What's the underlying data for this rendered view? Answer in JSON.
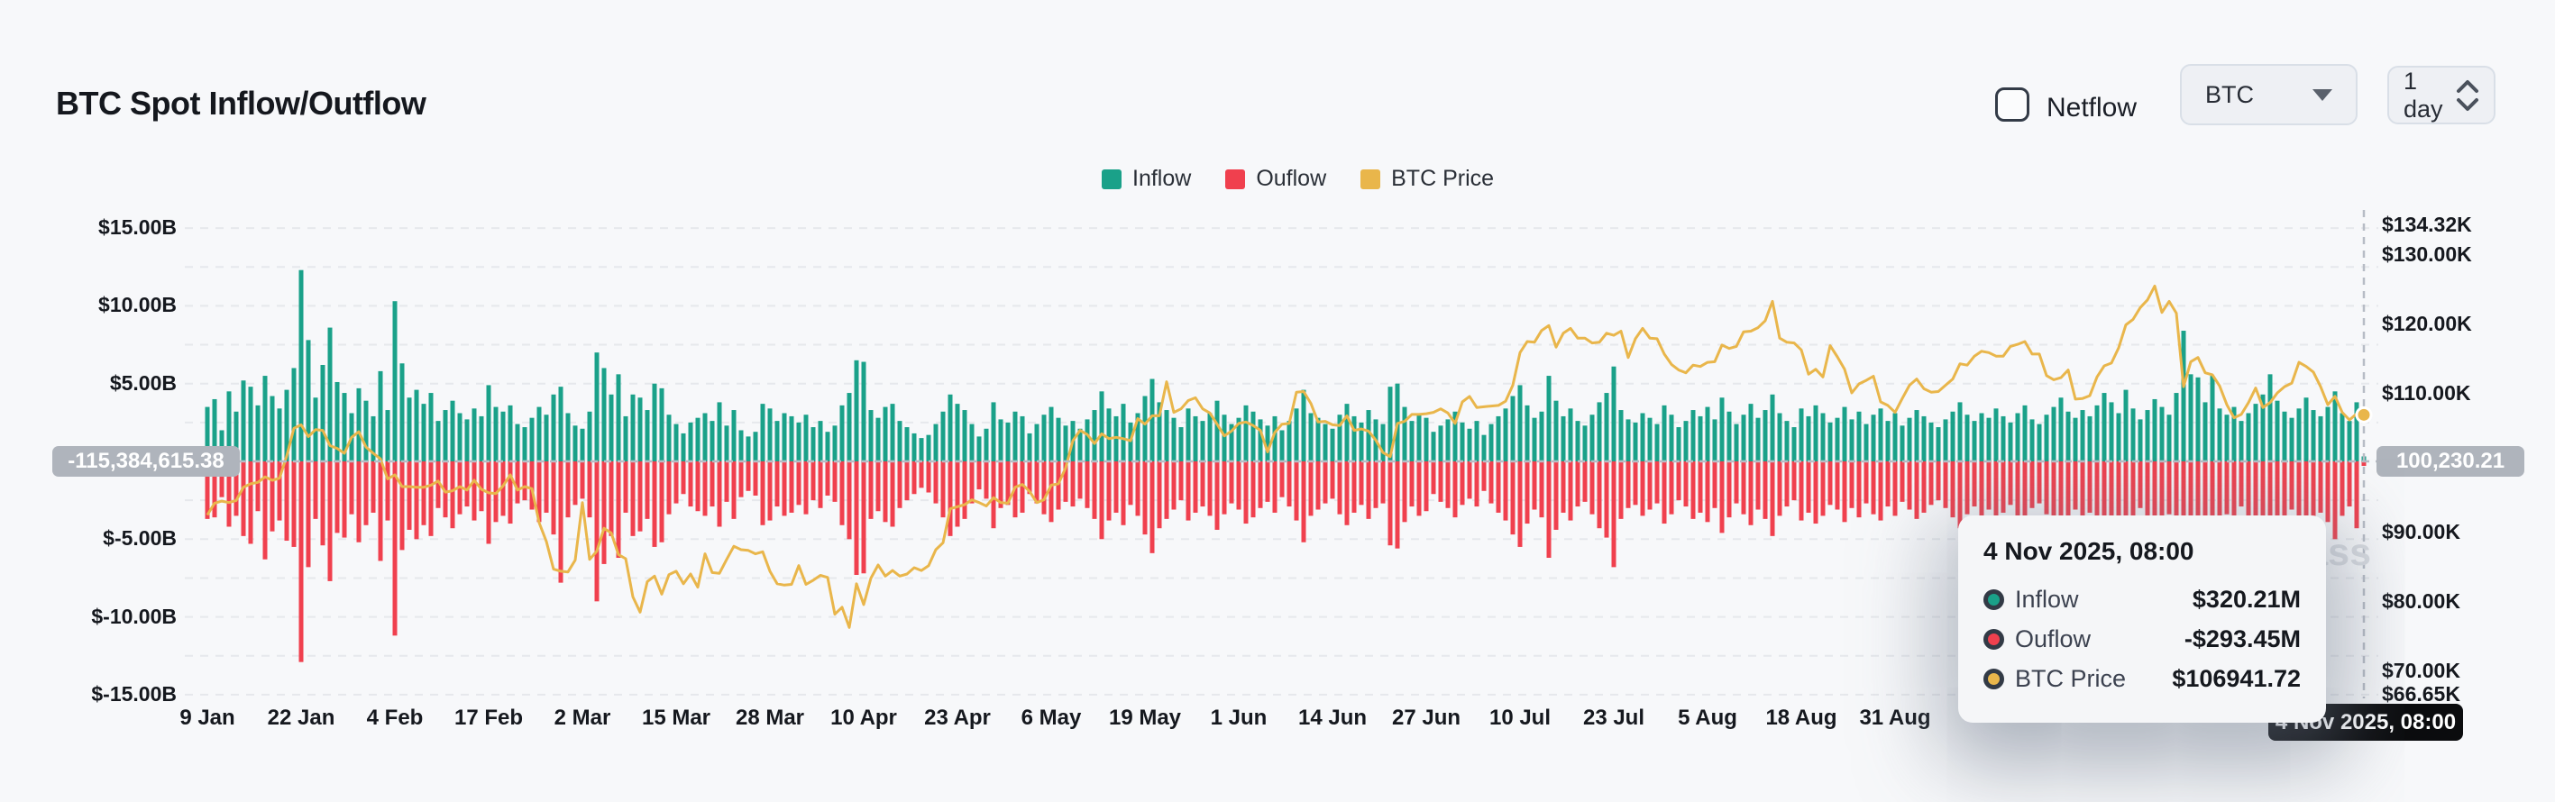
{
  "header": {
    "title": "BTC Spot Inflow/Outflow"
  },
  "controls": {
    "netflow_label": "Netflow",
    "coin_selected": "BTC",
    "interval_selected": "1 day"
  },
  "legend": [
    {
      "label": "Inflow",
      "color": "#1aa189"
    },
    {
      "label": "Ouflow",
      "color": "#f0404e"
    },
    {
      "label": "BTC Price",
      "color": "#e9b64b"
    }
  ],
  "watermark": {
    "text": "coinglass"
  },
  "crosshair": {
    "left_value": "-115,384,615.38",
    "right_value": "100,230.21",
    "x_value": "4 Nov 2025, 08:00"
  },
  "tooltip": {
    "title": "4 Nov 2025, 08:00",
    "rows": [
      {
        "label": "Inflow",
        "value": "$320.21M",
        "color": "#1aa189"
      },
      {
        "label": "Ouflow",
        "value": "-$293.45M",
        "color": "#f0404e"
      },
      {
        "label": "BTC Price",
        "value": "$106941.72",
        "color": "#e9b64b"
      }
    ]
  },
  "chart_data": {
    "type": "bar+line",
    "title": "BTC Spot Inflow/Outflow",
    "frequency": "daily",
    "x_start": "9 Jan 2025",
    "x_end": "4 Nov 2025",
    "left_axis": {
      "unit": "$B",
      "range": [
        -15,
        15
      ],
      "grid_step": 2.5
    },
    "right_axis": {
      "unit": "$K",
      "range": [
        66.65,
        134.32
      ]
    },
    "left_ticks": [
      {
        "label": "$15.00B",
        "value": 15
      },
      {
        "label": "$10.00B",
        "value": 10
      },
      {
        "label": "$5.00B",
        "value": 5
      },
      {
        "label": "$-5.00B",
        "value": -5
      },
      {
        "label": "$-10.00B",
        "value": -10
      },
      {
        "label": "$-15.00B",
        "value": -15
      }
    ],
    "right_ticks": [
      {
        "label": "$134.32K",
        "value": 134.32
      },
      {
        "label": "$130.00K",
        "value": 130
      },
      {
        "label": "$120.00K",
        "value": 120
      },
      {
        "label": "$110.00K",
        "value": 110
      },
      {
        "label": "$90.00K",
        "value": 90
      },
      {
        "label": "$80.00K",
        "value": 80
      },
      {
        "label": "$70.00K",
        "value": 70
      },
      {
        "label": "$66.65K",
        "value": 66.65
      }
    ],
    "x_ticks": [
      {
        "label": "9 Jan",
        "index": 0
      },
      {
        "label": "22 Jan",
        "index": 13
      },
      {
        "label": "4 Feb",
        "index": 26
      },
      {
        "label": "17 Feb",
        "index": 39
      },
      {
        "label": "2 Mar",
        "index": 52
      },
      {
        "label": "15 Mar",
        "index": 65
      },
      {
        "label": "28 Mar",
        "index": 78
      },
      {
        "label": "10 Apr",
        "index": 91
      },
      {
        "label": "23 Apr",
        "index": 104
      },
      {
        "label": "6 May",
        "index": 117
      },
      {
        "label": "19 May",
        "index": 130
      },
      {
        "label": "1 Jun",
        "index": 143
      },
      {
        "label": "14 Jun",
        "index": 156
      },
      {
        "label": "27 Jun",
        "index": 169
      },
      {
        "label": "10 Jul",
        "index": 182
      },
      {
        "label": "23 Jul",
        "index": 195
      },
      {
        "label": "5 Aug",
        "index": 208
      },
      {
        "label": "18 Aug",
        "index": 221
      },
      {
        "label": "31 Aug",
        "index": 234
      }
    ],
    "series": [
      {
        "name": "Inflow",
        "type": "bar",
        "axis": "left",
        "unit": "$B",
        "color": "#1aa189",
        "values": [
          3.5,
          4.0,
          2.0,
          4.5,
          3.2,
          5.2,
          4.8,
          3.6,
          5.5,
          4.2,
          3.4,
          4.6,
          6.0,
          12.3,
          7.8,
          4.1,
          6.2,
          8.6,
          5.1,
          4.4,
          3.1,
          4.7,
          3.9,
          2.9,
          5.8,
          3.3,
          10.3,
          6.3,
          4.1,
          4.6,
          3.7,
          4.4,
          2.6,
          3.3,
          3.9,
          3.1,
          2.7,
          3.4,
          2.9,
          4.9,
          3.5,
          3.2,
          3.6,
          2.4,
          2.2,
          2.8,
          3.5,
          3.0,
          4.3,
          4.8,
          3.1,
          2.3,
          2.1,
          3.2,
          7.0,
          6.0,
          4.3,
          5.6,
          2.9,
          4.3,
          4.1,
          3.3,
          5.0,
          4.7,
          3.0,
          2.4,
          1.8,
          2.5,
          2.8,
          3.1,
          2.6,
          3.8,
          2.3,
          3.3,
          2.0,
          1.6,
          1.9,
          3.7,
          3.4,
          2.6,
          3.1,
          2.9,
          2.5,
          3.0,
          2.2,
          2.6,
          1.9,
          2.3,
          3.6,
          4.4,
          6.5,
          6.4,
          3.3,
          2.8,
          3.5,
          3.7,
          2.6,
          2.2,
          1.8,
          1.5,
          1.7,
          2.4,
          3.2,
          4.3,
          3.7,
          3.3,
          2.4,
          1.6,
          2.1,
          3.8,
          2.7,
          2.5,
          3.2,
          2.9,
          1.8,
          2.4,
          3.0,
          3.5,
          2.8,
          2.3,
          2.6,
          2.1,
          2.7,
          3.3,
          4.5,
          3.4,
          2.9,
          3.7,
          2.5,
          3.1,
          4.2,
          5.3,
          3.8,
          3.3,
          2.8,
          2.2,
          3.4,
          2.9,
          2.6,
          3.1,
          3.9,
          3.0,
          2.4,
          2.8,
          3.6,
          3.2,
          2.7,
          2.3,
          2.9,
          2.0,
          2.6,
          3.4,
          4.6,
          3.1,
          2.8,
          2.4,
          2.1,
          3.0,
          3.7,
          2.9,
          2.5,
          3.3,
          2.7,
          2.4,
          4.8,
          5.0,
          3.5,
          2.6,
          3.1,
          2.8,
          1.9,
          2.3,
          2.7,
          3.2,
          2.5,
          2.1,
          2.6,
          1.7,
          2.4,
          2.9,
          3.4,
          4.2,
          4.9,
          3.6,
          2.8,
          3.2,
          5.5,
          3.9,
          2.9,
          3.4,
          2.6,
          2.3,
          3.0,
          3.8,
          4.4,
          6.1,
          3.3,
          2.7,
          2.5,
          3.1,
          2.8,
          2.4,
          3.6,
          3.0,
          2.2,
          2.6,
          3.3,
          2.9,
          3.5,
          2.7,
          4.1,
          3.2,
          2.4,
          3.0,
          3.7,
          2.8,
          3.3,
          4.3,
          3.1,
          2.6,
          2.2,
          3.4,
          2.9,
          3.6,
          3.1,
          2.5,
          2.8,
          3.5,
          2.7,
          3.2,
          2.4,
          3.0,
          3.4,
          2.6,
          3.1,
          2.3,
          2.8,
          3.3,
          2.9,
          2.5,
          2.2,
          2.7,
          3.2,
          3.8,
          3.0,
          2.6,
          3.1,
          2.8,
          3.4,
          2.9,
          2.5,
          3.1,
          3.6,
          2.7,
          2.4,
          3.0,
          3.5,
          4.1,
          3.2,
          2.8,
          3.3,
          2.9,
          3.6,
          4.4,
          3.8,
          3.1,
          4.6,
          3.4,
          2.7,
          3.3,
          4.0,
          3.5,
          3.0,
          4.4,
          8.4,
          5.6,
          5.4,
          3.8,
          5.5,
          3.4,
          3.0,
          3.5,
          2.6,
          3.1,
          3.7,
          4.3,
          5.6,
          3.9,
          3.2,
          2.8,
          3.4,
          4.1,
          3.3,
          2.9,
          3.5,
          4.5,
          3.1,
          2.6,
          3.8,
          0.32
        ]
      },
      {
        "name": "Ouflow",
        "type": "bar",
        "axis": "left",
        "unit": "$B",
        "color": "#f0404e",
        "values": [
          -3.7,
          -3.6,
          -2.3,
          -4.2,
          -3.5,
          -4.8,
          -5.3,
          -3.2,
          -6.3,
          -4.5,
          -3.8,
          -5.1,
          -5.5,
          -12.9,
          -6.8,
          -3.7,
          -5.4,
          -7.7,
          -4.6,
          -4.9,
          -3.4,
          -5.2,
          -4.1,
          -3.3,
          -6.4,
          -3.8,
          -11.2,
          -5.7,
          -4.4,
          -5.0,
          -4.1,
          -4.8,
          -3.0,
          -3.6,
          -4.3,
          -3.4,
          -2.9,
          -3.8,
          -3.2,
          -5.3,
          -3.9,
          -3.5,
          -4.0,
          -2.7,
          -2.5,
          -3.1,
          -3.9,
          -3.3,
          -4.7,
          -7.8,
          -3.6,
          -2.8,
          -2.4,
          -3.6,
          -9.0,
          -6.6,
          -4.8,
          -6.2,
          -3.3,
          -4.8,
          -4.5,
          -3.7,
          -5.5,
          -5.2,
          -3.4,
          -2.7,
          -2.1,
          -2.9,
          -3.2,
          -3.5,
          -2.9,
          -4.2,
          -2.6,
          -3.7,
          -2.3,
          -1.9,
          -2.2,
          -4.1,
          -3.8,
          -2.9,
          -3.5,
          -3.3,
          -2.8,
          -3.4,
          -2.5,
          -3.0,
          -2.2,
          -2.6,
          -4.1,
          -5.0,
          -7.3,
          -7.2,
          -3.7,
          -3.2,
          -3.9,
          -4.2,
          -3.0,
          -2.5,
          -2.1,
          -1.7,
          -2.0,
          -2.7,
          -3.6,
          -4.8,
          -4.2,
          -3.7,
          -2.7,
          -1.8,
          -2.4,
          -4.3,
          -3.0,
          -2.8,
          -3.6,
          -3.3,
          -2.1,
          -2.7,
          -3.4,
          -3.9,
          -3.1,
          -2.6,
          -2.9,
          -2.4,
          -3.0,
          -3.7,
          -5.0,
          -3.8,
          -3.3,
          -4.1,
          -2.8,
          -3.5,
          -4.7,
          -5.9,
          -4.3,
          -3.7,
          -3.1,
          -2.5,
          -3.8,
          -3.3,
          -2.9,
          -3.5,
          -4.4,
          -3.4,
          -2.7,
          -3.1,
          -4.0,
          -3.6,
          -3.0,
          -2.6,
          -3.3,
          -2.3,
          -2.9,
          -3.8,
          -5.2,
          -3.5,
          -3.1,
          -2.7,
          -2.4,
          -3.4,
          -4.1,
          -3.3,
          -2.8,
          -3.7,
          -3.0,
          -2.7,
          -5.4,
          -5.6,
          -3.9,
          -2.9,
          -3.5,
          -3.2,
          -2.1,
          -2.6,
          -3.0,
          -3.6,
          -2.8,
          -2.4,
          -2.9,
          -1.9,
          -2.7,
          -3.3,
          -3.8,
          -4.7,
          -5.5,
          -4.0,
          -3.1,
          -3.6,
          -6.2,
          -4.4,
          -3.3,
          -3.8,
          -2.9,
          -2.6,
          -3.4,
          -4.3,
          -4.9,
          -6.8,
          -3.7,
          -3.0,
          -2.8,
          -3.5,
          -3.1,
          -2.7,
          -4.0,
          -3.4,
          -2.5,
          -2.9,
          -3.7,
          -3.3,
          -3.9,
          -3.0,
          -4.6,
          -3.6,
          -2.7,
          -3.4,
          -4.1,
          -3.1,
          -3.7,
          -4.8,
          -3.5,
          -2.9,
          -2.5,
          -3.8,
          -3.3,
          -4.0,
          -3.5,
          -2.8,
          -3.1,
          -3.9,
          -3.0,
          -3.6,
          -2.7,
          -3.4,
          -3.8,
          -2.9,
          -3.5,
          -2.6,
          -3.1,
          -3.7,
          -3.3,
          -2.8,
          -2.5,
          -3.0,
          -3.6,
          -4.3,
          -3.4,
          -2.9,
          -3.5,
          -3.1,
          -3.8,
          -3.3,
          -2.8,
          -3.5,
          -4.0,
          -3.0,
          -2.7,
          -3.4,
          -3.9,
          -4.6,
          -3.6,
          -3.1,
          -3.7,
          -3.3,
          -4.0,
          -4.9,
          -4.3,
          -3.5,
          -5.1,
          -3.8,
          -3.0,
          -3.7,
          -4.5,
          -3.9,
          -3.4,
          -4.9,
          -7.8,
          -6.1,
          -6.0,
          -4.3,
          -6.1,
          -3.8,
          -3.4,
          -3.9,
          -2.9,
          -3.5,
          -4.2,
          -4.8,
          -6.3,
          -4.4,
          -3.6,
          -3.1,
          -3.8,
          -4.6,
          -3.7,
          -3.3,
          -3.9,
          -5.0,
          -3.5,
          -2.9,
          -4.3,
          -0.29
        ]
      },
      {
        "name": "BTC Price",
        "type": "line",
        "axis": "right",
        "unit": "$K",
        "color": "#e9b64b",
        "values": [
          92.5,
          94.2,
          94.5,
          94.3,
          94.6,
          96.5,
          97.0,
          97.2,
          98.0,
          97.5,
          97.8,
          101.0,
          105.0,
          105.5,
          103.8,
          104.8,
          104.7,
          102.5,
          102.1,
          101.4,
          103.7,
          104.5,
          102.3,
          101.4,
          100.6,
          97.7,
          98.3,
          96.6,
          96.6,
          96.5,
          96.5,
          96.8,
          97.4,
          95.8,
          96.0,
          96.6,
          96.1,
          97.5,
          96.2,
          95.7,
          95.6,
          96.7,
          98.3,
          96.1,
          96.6,
          96.3,
          91.4,
          88.7,
          84.7,
          84.4,
          84.3,
          86.0,
          94.3,
          86.1,
          87.3,
          90.6,
          89.9,
          86.8,
          86.2,
          80.7,
          78.5,
          82.9,
          83.7,
          81.1,
          83.9,
          84.4,
          82.6,
          84.0,
          82.1,
          86.9,
          84.2,
          84.1,
          86.1,
          88.0,
          87.5,
          87.4,
          86.9,
          87.2,
          84.4,
          82.6,
          82.4,
          82.5,
          85.2,
          82.5,
          83.1,
          83.8,
          83.5,
          78.2,
          79.2,
          76.3,
          82.6,
          79.6,
          83.4,
          85.3,
          83.7,
          84.5,
          83.7,
          84.0,
          84.9,
          84.5,
          85.2,
          87.5,
          88.5,
          93.4,
          93.7,
          94.0,
          94.7,
          94.3,
          93.8,
          95.0,
          94.3,
          94.2,
          96.5,
          96.9,
          95.9,
          94.3,
          94.7,
          96.8,
          97.0,
          99.3,
          103.2,
          104.7,
          104.1,
          102.8,
          104.2,
          103.5,
          103.7,
          103.5,
          103.2,
          106.4,
          105.6,
          106.8,
          106.8,
          111.7,
          107.3,
          107.8,
          109.0,
          109.4,
          107.8,
          107.2,
          105.6,
          103.9,
          104.6,
          105.7,
          105.9,
          105.4,
          104.7,
          101.6,
          104.4,
          105.6,
          105.7,
          110.2,
          110.3,
          108.6,
          105.9,
          106.0,
          105.5,
          105.4,
          106.8,
          104.7,
          104.9,
          104.6,
          103.3,
          101.5,
          100.9,
          105.7,
          106.0,
          107.0,
          107.0,
          107.1,
          107.3,
          107.8,
          107.2,
          105.7,
          108.8,
          109.6,
          108.0,
          108.1,
          108.2,
          108.3,
          108.9,
          111.2,
          115.9,
          117.5,
          117.4,
          119.1,
          119.8,
          116.7,
          118.7,
          119.4,
          118.0,
          118.0,
          117.3,
          117.4,
          118.7,
          118.4,
          119.0,
          115.2,
          117.9,
          119.4,
          118.0,
          117.9,
          115.7,
          114.2,
          113.4,
          113.0,
          114.1,
          113.9,
          114.5,
          114.6,
          117.0,
          116.5,
          116.8,
          118.9,
          119.0,
          119.5,
          120.5,
          123.3,
          118.0,
          117.4,
          117.3,
          116.3,
          112.8,
          113.5,
          112.4,
          116.9,
          115.3,
          113.5,
          110.1,
          111.4,
          111.9,
          112.5,
          108.8,
          108.3,
          107.3,
          109.3,
          111.2,
          112.1,
          110.7,
          110.2,
          110.3,
          111.2,
          112.1,
          114.3,
          114.1,
          115.4,
          116.1,
          115.9,
          115.4,
          115.4,
          116.8,
          117.1,
          117.5,
          115.7,
          115.7,
          112.6,
          112.0,
          112.3,
          113.4,
          109.2,
          109.3,
          109.7,
          112.4,
          114.0,
          114.4,
          116.6,
          119.9,
          120.7,
          122.4,
          123.5,
          125.5,
          121.7,
          123.3,
          121.6,
          111.0,
          114.6,
          115.2,
          113.0,
          112.7,
          111.1,
          108.4,
          106.5,
          107.0,
          108.7,
          110.8,
          108.0,
          108.7,
          110.1,
          111.0,
          111.5,
          114.5,
          113.9,
          113.1,
          111.0,
          108.4,
          109.6,
          107.3,
          106.2,
          107.1,
          106.94
        ]
      }
    ]
  }
}
